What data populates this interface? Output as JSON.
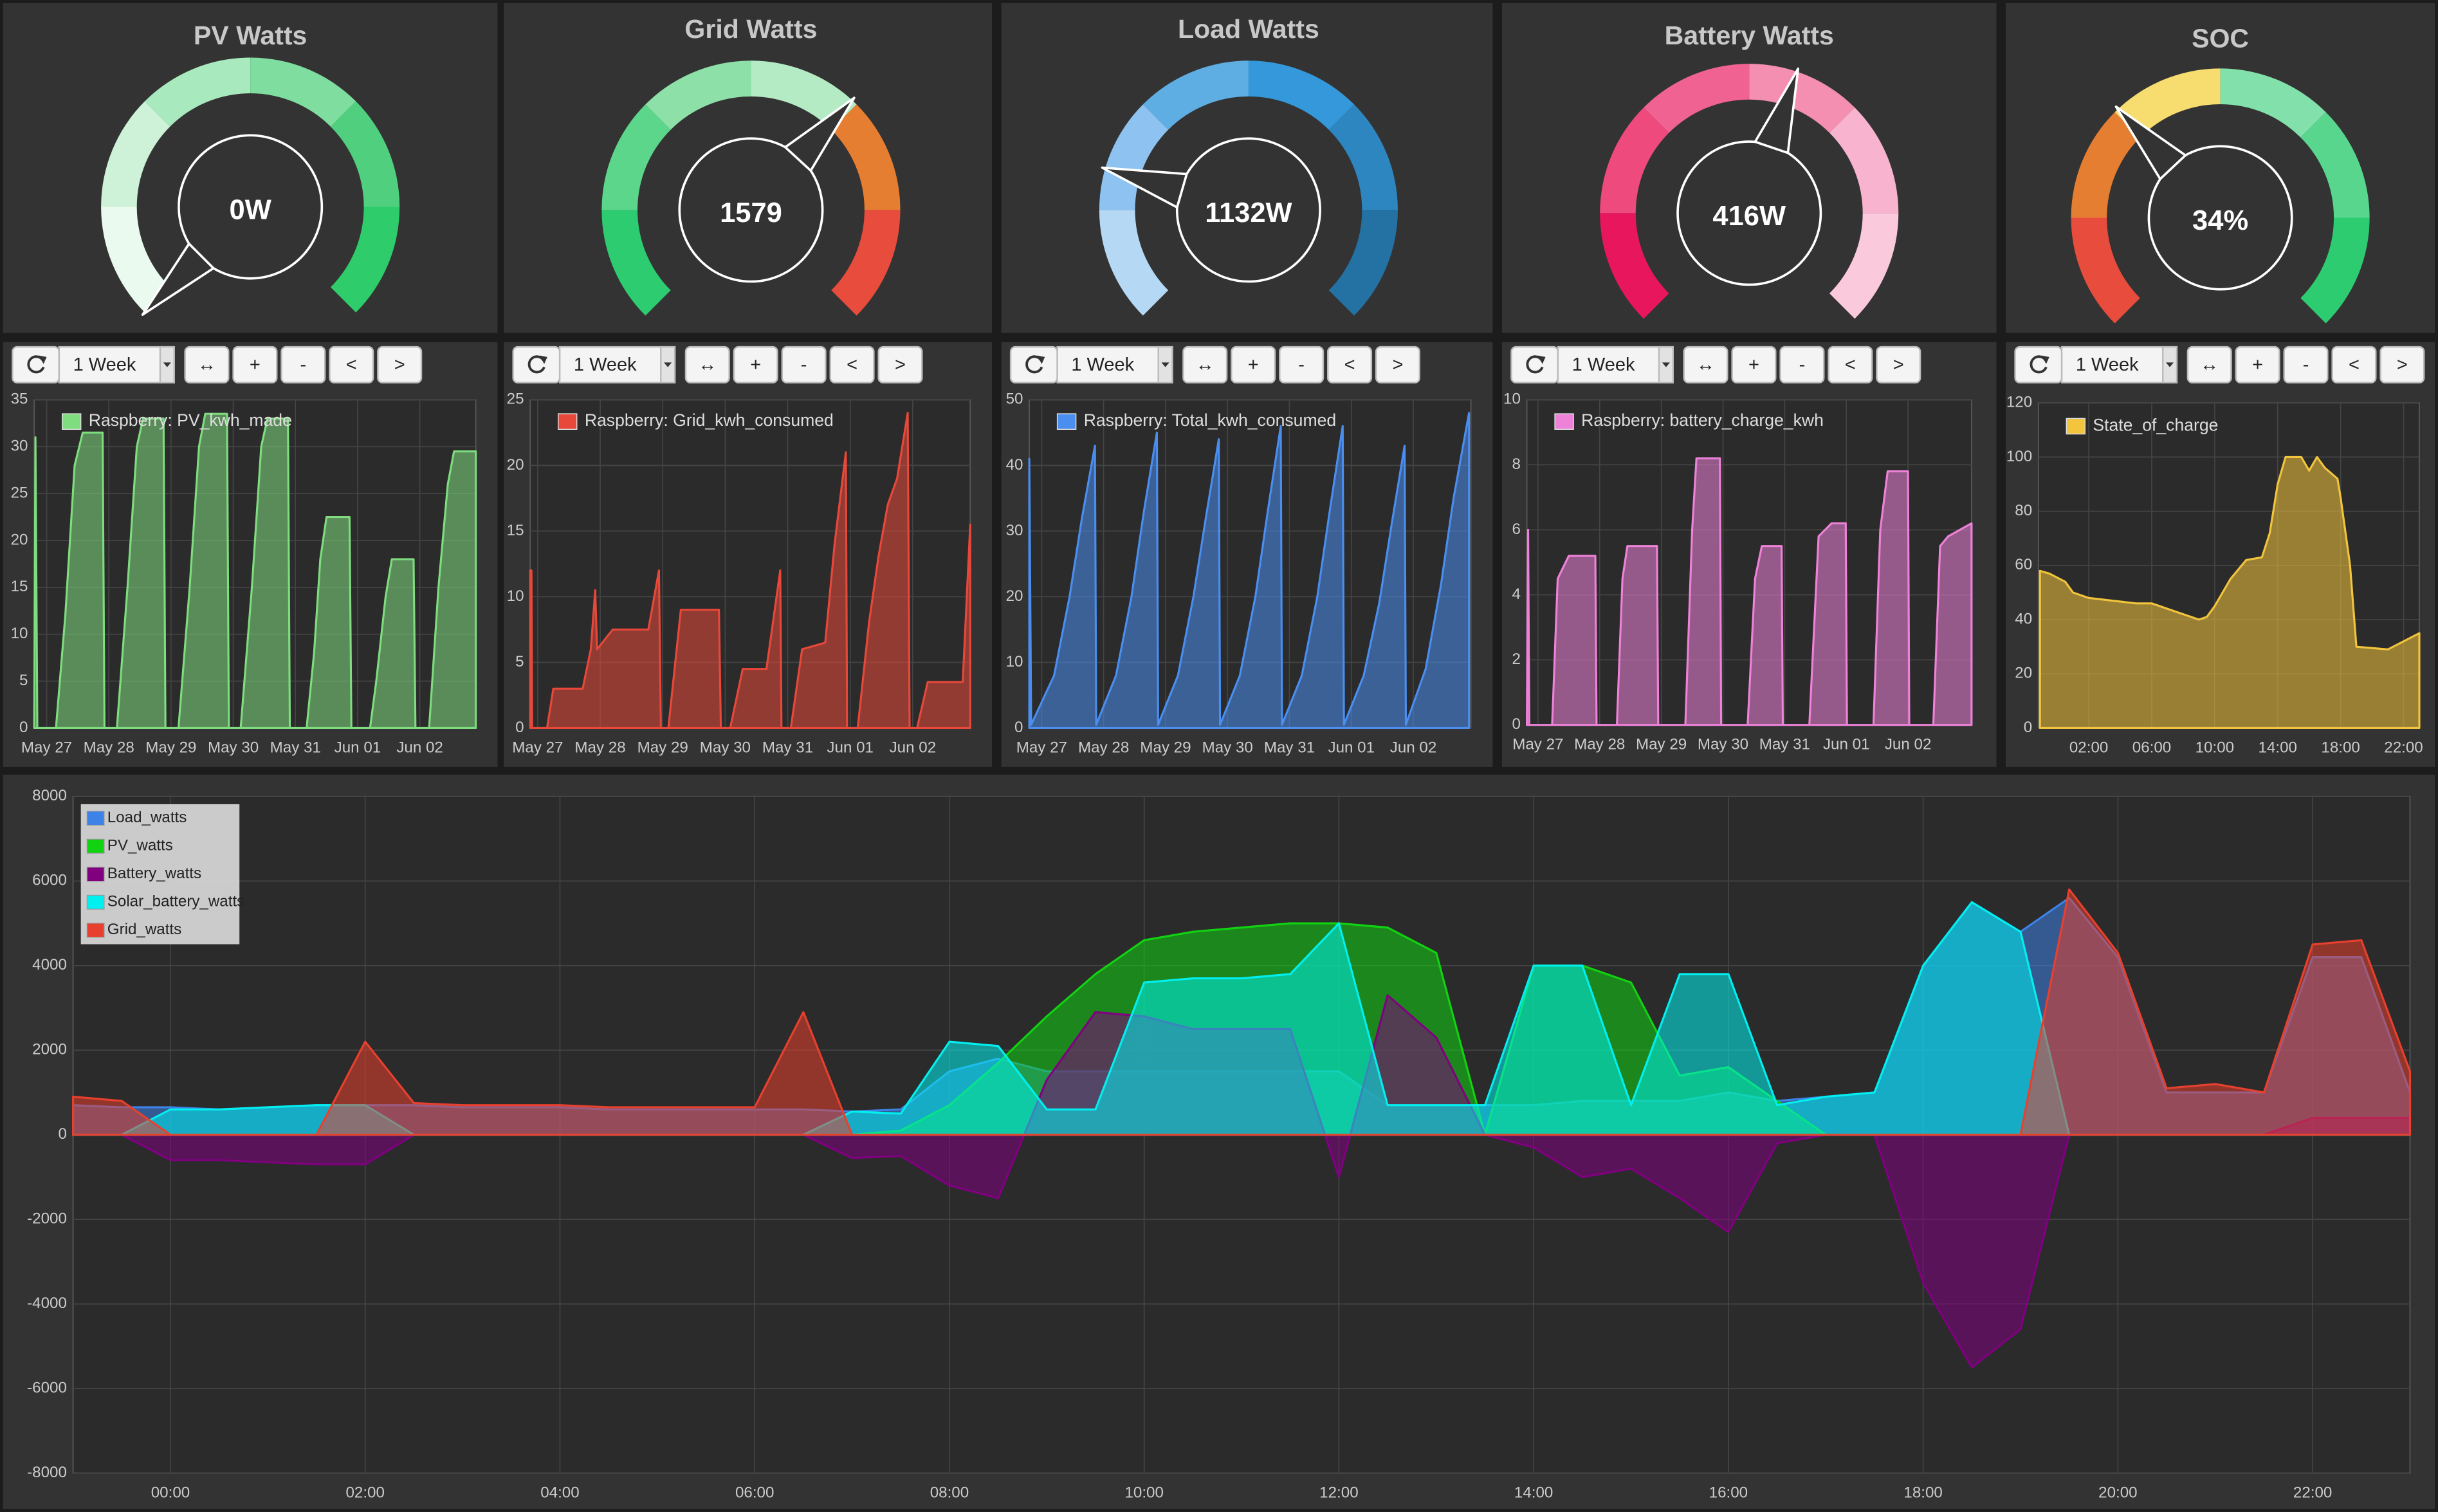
{
  "gauges": [
    {
      "title": "PV Watts",
      "value": 0,
      "value_label": "0W",
      "range": [
        0,
        3000
      ],
      "colors": [
        "#eafaee",
        "#cdf2d7",
        "#a8e9bd",
        "#7fdd9f",
        "#50d07f",
        "#2ecc6a"
      ]
    },
    {
      "title": "Grid Watts",
      "value": 1579,
      "value_label": "1579",
      "range": [
        0,
        2400
      ],
      "colors": [
        "#2ecc71",
        "#5cd68b",
        "#8ee0a9",
        "#b5ebc4",
        "#e67e32",
        "#e74c3c"
      ]
    },
    {
      "title": "Load Watts",
      "value": 1132,
      "value_label": "1132W",
      "range": [
        0,
        5000
      ],
      "colors": [
        "#b5d8f5",
        "#8ec2f0",
        "#5eaee3",
        "#3498db",
        "#2e86c1",
        "#2471a3"
      ]
    },
    {
      "title": "Battery Watts",
      "value": 416,
      "value_label": "416W",
      "range": [
        -3000,
        3000
      ],
      "colors": [
        "#e8175d",
        "#ee4a7e",
        "#f06292",
        "#f48fb1",
        "#f8b4ce",
        "#fbc9dc"
      ]
    },
    {
      "title": "SOC",
      "value": 34,
      "value_label": "34%",
      "range": [
        0,
        100
      ],
      "colors": [
        "#e74c3c",
        "#e67e32",
        "#f7dc6f",
        "#82e0aa",
        "#58d68d",
        "#2ecc71"
      ]
    }
  ],
  "controls": {
    "period": "1 Week",
    "buttons": [
      "↔",
      "+",
      "-",
      "<",
      ">"
    ]
  },
  "chart_data": [
    {
      "type": "area",
      "legend": "upper left",
      "grid": true,
      "x": [
        -0.2,
        -0.18,
        -0.15,
        0.15,
        0.3,
        0.45,
        0.58,
        0.9,
        0.93,
        1.13,
        1.3,
        1.45,
        1.55,
        1.88,
        1.91,
        2.12,
        2.3,
        2.45,
        2.55,
        2.9,
        2.93,
        3.12,
        3.3,
        3.45,
        3.55,
        3.88,
        3.91,
        4.18,
        4.3,
        4.4,
        4.5,
        4.87,
        4.9,
        5.2,
        5.3,
        5.45,
        5.55,
        5.9,
        5.93,
        6.15,
        6.3,
        6.45,
        6.55,
        6.9
      ],
      "series": [
        {
          "name": "Raspberry: PV_kwh_made",
          "color": "#7fdc7f",
          "values": [
            0,
            31,
            0,
            0,
            12,
            28,
            31.5,
            31.5,
            0,
            0,
            15,
            30,
            33,
            33,
            0,
            0,
            15,
            30,
            33.5,
            33.5,
            0,
            0,
            15,
            30,
            33,
            33,
            0,
            0,
            8,
            18,
            22.5,
            22.5,
            0,
            0,
            5,
            14,
            18,
            18,
            0,
            0,
            15,
            26,
            29.5,
            29.5
          ]
        }
      ],
      "xlim": [
        -0.2,
        6.9
      ],
      "ylim": [
        0,
        35
      ],
      "yticks": [
        0,
        5,
        10,
        15,
        20,
        25,
        30,
        35
      ],
      "xticks": [
        {
          "value": 0,
          "label": "May 27"
        },
        {
          "value": 1,
          "label": "May 28"
        },
        {
          "value": 2,
          "label": "May 29"
        },
        {
          "value": 3,
          "label": "May 30"
        },
        {
          "value": 4,
          "label": "May 31"
        },
        {
          "value": 5,
          "label": "Jun 01"
        },
        {
          "value": 6,
          "label": "Jun 02"
        }
      ]
    },
    {
      "type": "area",
      "legend": "upper left",
      "grid": true,
      "x": [
        -0.12,
        -0.1,
        -0.09,
        0.15,
        0.25,
        0.72,
        0.85,
        0.92,
        0.95,
        1.2,
        1.77,
        1.94,
        1.97,
        2.09,
        2.29,
        2.9,
        2.93,
        3.08,
        3.28,
        3.66,
        3.88,
        3.9,
        4.05,
        4.23,
        4.6,
        4.75,
        4.93,
        4.95,
        5.12,
        5.3,
        5.45,
        5.6,
        5.75,
        5.92,
        5.95,
        6.07,
        6.24,
        6.8,
        6.92
      ],
      "series": [
        {
          "name": "Raspberry: Grid_kwh_consumed",
          "color": "#e8483a",
          "values": [
            12,
            12,
            0,
            0,
            3,
            3,
            6,
            10.5,
            6,
            7.5,
            7.5,
            12,
            0,
            0,
            9,
            9,
            0,
            0,
            4.5,
            4.5,
            12,
            0,
            0,
            6,
            6.5,
            14,
            21,
            0,
            0,
            8,
            13,
            17,
            19,
            24,
            0,
            0,
            3.5,
            3.5,
            15.5
          ]
        }
      ],
      "xlim": [
        -0.12,
        6.92
      ],
      "ylim": [
        0,
        25
      ],
      "yticks": [
        0,
        5,
        10,
        15,
        20,
        25
      ],
      "xticks": [
        {
          "value": 0,
          "label": "May 27"
        },
        {
          "value": 1,
          "label": "May 28"
        },
        {
          "value": 2,
          "label": "May 29"
        },
        {
          "value": 3,
          "label": "May 30"
        },
        {
          "value": 4,
          "label": "May 31"
        },
        {
          "value": 5,
          "label": "Jun 01"
        },
        {
          "value": 6,
          "label": "Jun 02"
        }
      ]
    },
    {
      "type": "area",
      "legend": "upper left",
      "grid": true,
      "x": [
        -0.2,
        -0.17,
        0.2,
        0.45,
        0.65,
        0.86,
        0.88,
        1.2,
        1.45,
        1.65,
        1.86,
        1.88,
        2.2,
        2.45,
        2.65,
        2.86,
        2.88,
        3.2,
        3.45,
        3.65,
        3.86,
        3.88,
        4.2,
        4.45,
        4.65,
        4.86,
        4.88,
        5.2,
        5.45,
        5.65,
        5.86,
        5.88,
        6.2,
        6.45,
        6.65,
        6.9
      ],
      "series": [
        {
          "name": "Raspberry: Total_kwh_consumed",
          "color": "#4a8ef0",
          "values": [
            41,
            0.5,
            8,
            20,
            32,
            43,
            0.5,
            8,
            20,
            33,
            45,
            0.5,
            8,
            20,
            32,
            44,
            0.5,
            8,
            20,
            33,
            46,
            0.5,
            8,
            20,
            33,
            46,
            0.5,
            8,
            19,
            31,
            43,
            0.5,
            9,
            22,
            35,
            48
          ]
        }
      ],
      "xlim": [
        -0.2,
        6.93
      ],
      "ylim": [
        0,
        50
      ],
      "yticks": [
        0,
        10,
        20,
        30,
        40,
        50
      ],
      "xticks": [
        {
          "value": 0,
          "label": "May 27"
        },
        {
          "value": 1,
          "label": "May 28"
        },
        {
          "value": 2,
          "label": "May 29"
        },
        {
          "value": 3,
          "label": "May 30"
        },
        {
          "value": 4,
          "label": "May 31"
        },
        {
          "value": 5,
          "label": "Jun 01"
        },
        {
          "value": 6,
          "label": "Jun 02"
        }
      ]
    },
    {
      "type": "area",
      "legend": "upper left",
      "grid": true,
      "x": [
        -0.18,
        -0.16,
        -0.14,
        0.23,
        0.32,
        0.5,
        0.93,
        0.95,
        1.28,
        1.37,
        1.45,
        1.93,
        1.95,
        2.39,
        2.5,
        2.57,
        2.95,
        2.97,
        3.4,
        3.52,
        3.63,
        3.95,
        3.97,
        4.4,
        4.55,
        4.76,
        4.99,
        5.01,
        5.44,
        5.55,
        5.67,
        6.0,
        6.02,
        6.41,
        6.52,
        6.65,
        7.03
      ],
      "series": [
        {
          "name": "Raspberry: battery_charge_kwh",
          "color": "#ee82d8",
          "values": [
            0,
            6,
            0,
            0,
            4.5,
            5.2,
            5.2,
            0,
            0,
            4.5,
            5.5,
            5.5,
            0,
            0,
            6,
            8.2,
            8.2,
            0,
            0,
            4.5,
            5.5,
            5.5,
            0,
            0,
            5.8,
            6.2,
            6.2,
            0,
            0,
            6,
            7.8,
            7.8,
            0,
            0,
            5.5,
            5.8,
            6.2
          ]
        }
      ],
      "xlim": [
        -0.18,
        7.03
      ],
      "ylim": [
        0,
        10
      ],
      "yticks": [
        0,
        2,
        4,
        6,
        8,
        10
      ],
      "xticks": [
        {
          "value": 0,
          "label": "May 27"
        },
        {
          "value": 1,
          "label": "May 28"
        },
        {
          "value": 2,
          "label": "May 29"
        },
        {
          "value": 3,
          "label": "May 30"
        },
        {
          "value": 4,
          "label": "May 31"
        },
        {
          "value": 5,
          "label": "Jun 01"
        },
        {
          "value": 6,
          "label": "Jun 02"
        }
      ]
    },
    {
      "type": "area",
      "legend": "upper left",
      "grid": true,
      "x": [
        -1.1,
        -0.5,
        0.5,
        1,
        2,
        3.5,
        5,
        6,
        7,
        8,
        9,
        9.5,
        10,
        11,
        12,
        13,
        13.5,
        14,
        14.5,
        15.5,
        16,
        16.5,
        17,
        17.8,
        18,
        18.6,
        19,
        21,
        22,
        23
      ],
      "series": [
        {
          "name": "State_of_charge",
          "color": "#f2c53d",
          "values": [
            58,
            57,
            54,
            50,
            48,
            47,
            46,
            46,
            44,
            42,
            40,
            41,
            45,
            55,
            62,
            63,
            72,
            90,
            100,
            100,
            95,
            100,
            96,
            92,
            85,
            60,
            30,
            29,
            32,
            35
          ]
        }
      ],
      "xlim": [
        -1.2,
        23
      ],
      "ylim": [
        0,
        120
      ],
      "yticks": [
        0,
        20,
        40,
        60,
        80,
        100,
        120
      ],
      "xticks": [
        {
          "value": 2,
          "label": "02:00"
        },
        {
          "value": 6,
          "label": "06:00"
        },
        {
          "value": 10,
          "label": "10:00"
        },
        {
          "value": 14,
          "label": "14:00"
        },
        {
          "value": 18,
          "label": "18:00"
        },
        {
          "value": 22,
          "label": "22:00"
        }
      ]
    },
    {
      "type": "area",
      "legend": "upper left",
      "grid": true,
      "x": [
        -1,
        -0.5,
        0,
        0.5,
        1,
        1.5,
        2,
        2.5,
        3,
        3.5,
        4,
        4.5,
        5,
        5.5,
        6,
        6.5,
        7,
        7.5,
        8,
        8.5,
        9,
        9.5,
        10,
        10.5,
        11,
        11.5,
        12,
        12.5,
        13,
        13.5,
        14,
        14.5,
        15,
        15.5,
        16,
        16.5,
        17,
        17.5,
        18,
        18.5,
        19,
        19.5,
        20,
        20.5,
        21,
        21.5,
        22,
        22.5,
        23
      ],
      "series": [
        {
          "name": "Load_watts",
          "color": "#3d82e6",
          "values": [
            700,
            650,
            650,
            600,
            650,
            700,
            700,
            700,
            650,
            650,
            650,
            600,
            600,
            600,
            600,
            600,
            550,
            600,
            1500,
            1800,
            1500,
            1500,
            1500,
            1500,
            1500,
            1500,
            1500,
            700,
            700,
            700,
            700,
            800,
            800,
            800,
            1000,
            800,
            900,
            1000,
            4000,
            5500,
            4800,
            5600,
            4200,
            1000,
            1000,
            1000,
            4200,
            4200,
            1000
          ]
        },
        {
          "name": "PV_watts",
          "color": "#11d311",
          "values": [
            0,
            0,
            0,
            0,
            0,
            0,
            0,
            0,
            0,
            0,
            0,
            0,
            0,
            0,
            0,
            0,
            0,
            100,
            700,
            1700,
            2800,
            3800,
            4600,
            4800,
            4900,
            5000,
            5000,
            4900,
            4300,
            0,
            4000,
            4000,
            3600,
            1400,
            1600,
            800,
            0,
            0,
            0,
            0,
            0,
            0,
            0,
            0,
            0,
            0,
            0,
            0,
            0
          ]
        },
        {
          "name": "Battery_watts",
          "color": "#800080",
          "values": [
            0,
            0,
            -600,
            -600,
            -650,
            -700,
            -700,
            0,
            0,
            0,
            0,
            0,
            0,
            0,
            0,
            0,
            -550,
            -500,
            -1200,
            -1500,
            1300,
            2900,
            2800,
            2500,
            2500,
            2500,
            -1000,
            3300,
            2300,
            0,
            -300,
            -1000,
            -800,
            -1500,
            -2300,
            -200,
            0,
            0,
            -3500,
            -5500,
            -4600,
            0,
            0,
            0,
            0,
            0,
            400,
            400,
            400
          ]
        },
        {
          "name": "Solar_battery_watts",
          "color": "#00f0f0",
          "values": [
            0,
            0,
            600,
            600,
            650,
            700,
            700,
            0,
            0,
            0,
            0,
            0,
            0,
            0,
            0,
            0,
            550,
            500,
            2200,
            2100,
            600,
            600,
            3600,
            3700,
            3700,
            3800,
            5000,
            700,
            700,
            700,
            4000,
            4000,
            700,
            3800,
            3800,
            700,
            900,
            1000,
            4000,
            5500,
            4800,
            0,
            0,
            0,
            0,
            0,
            0,
            0,
            0
          ]
        },
        {
          "name": "Grid_watts",
          "color": "#e8402e",
          "values": [
            900,
            800,
            0,
            0,
            0,
            0,
            2200,
            750,
            700,
            700,
            700,
            650,
            650,
            650,
            650,
            2900,
            0,
            0,
            0,
            0,
            0,
            0,
            0,
            0,
            0,
            0,
            0,
            0,
            0,
            0,
            0,
            0,
            0,
            0,
            0,
            0,
            0,
            0,
            0,
            0,
            0,
            5800,
            4300,
            1100,
            1200,
            1000,
            4500,
            4600,
            1500
          ]
        }
      ],
      "xlim": [
        -1,
        23
      ],
      "ylim": [
        -8000,
        8000
      ],
      "yticks": [
        8000,
        6000,
        4000,
        2000,
        0,
        -2000,
        -4000,
        -6000,
        -8000
      ],
      "xticks": [
        {
          "value": 0,
          "label": "00:00"
        },
        {
          "value": 2,
          "label": "02:00"
        },
        {
          "value": 4,
          "label": "04:00"
        },
        {
          "value": 6,
          "label": "06:00"
        },
        {
          "value": 8,
          "label": "08:00"
        },
        {
          "value": 10,
          "label": "10:00"
        },
        {
          "value": 12,
          "label": "12:00"
        },
        {
          "value": 14,
          "label": "14:00"
        },
        {
          "value": 16,
          "label": "16:00"
        },
        {
          "value": 18,
          "label": "18:00"
        },
        {
          "value": 20,
          "label": "20:00"
        },
        {
          "value": 22,
          "label": "22:00"
        }
      ]
    }
  ]
}
